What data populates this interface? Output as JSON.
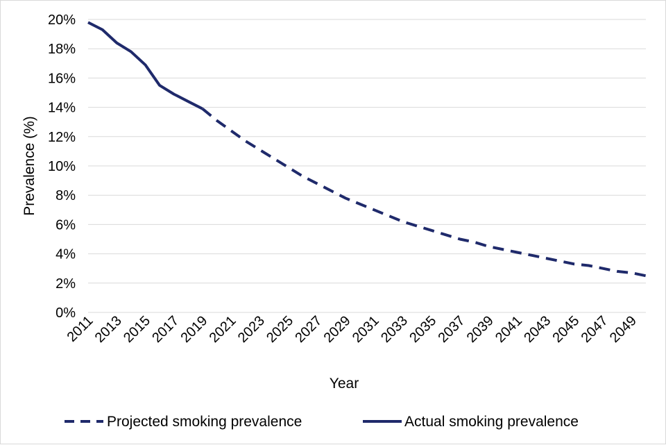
{
  "chart_data": {
    "type": "line",
    "title": "",
    "xlabel": "Year",
    "ylabel": "Prevalence (%)",
    "x_tick_labels": [
      "2011",
      "2013",
      "2015",
      "2017",
      "2019",
      "2021",
      "2023",
      "2025",
      "2027",
      "2029",
      "2031",
      "2033",
      "2035",
      "2037",
      "2039",
      "2041",
      "2043",
      "2045",
      "2047",
      "2049"
    ],
    "y_tick_labels": [
      "0%",
      "2%",
      "4%",
      "6%",
      "8%",
      "10%",
      "12%",
      "14%",
      "16%",
      "18%",
      "20%"
    ],
    "xlim": [
      2011,
      2050
    ],
    "ylim": [
      0,
      20
    ],
    "grid": "horizontal",
    "legend_position": "bottom",
    "series": [
      {
        "name": "Projected smoking prevalence",
        "style": "dashed",
        "color": "#1f2a6b",
        "x": [
          2019,
          2020,
          2021,
          2022,
          2023,
          2024,
          2025,
          2026,
          2027,
          2028,
          2029,
          2030,
          2031,
          2032,
          2033,
          2034,
          2035,
          2036,
          2037,
          2038,
          2039,
          2040,
          2041,
          2042,
          2043,
          2044,
          2045,
          2046,
          2047,
          2048,
          2049,
          2050
        ],
        "y": [
          13.9,
          13.1,
          12.4,
          11.7,
          11.1,
          10.5,
          9.9,
          9.3,
          8.8,
          8.3,
          7.8,
          7.4,
          7.0,
          6.6,
          6.2,
          5.9,
          5.6,
          5.3,
          5.0,
          4.8,
          4.5,
          4.3,
          4.1,
          3.9,
          3.7,
          3.5,
          3.3,
          3.2,
          3.0,
          2.8,
          2.7,
          2.5
        ]
      },
      {
        "name": "Actual smoking prevalence",
        "style": "solid",
        "color": "#1f2a6b",
        "x": [
          2011,
          2012,
          2013,
          2014,
          2015,
          2016,
          2017,
          2018,
          2019
        ],
        "y": [
          19.8,
          19.3,
          18.4,
          17.8,
          16.9,
          15.5,
          14.9,
          14.4,
          13.9
        ]
      }
    ]
  }
}
